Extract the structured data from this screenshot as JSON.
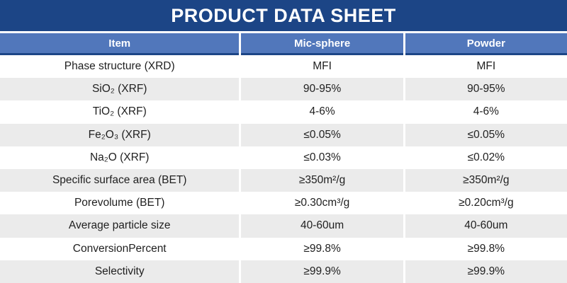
{
  "title": "PRODUCT DATA SHEET",
  "table": {
    "columns": [
      "Item",
      "Mic-sphere",
      "Powder"
    ],
    "rows": [
      {
        "item": "Phase structure (XRD)",
        "mic_sphere": "MFI",
        "powder": "MFI"
      },
      {
        "item": "SiO₂ (XRF)",
        "mic_sphere": "90-95%",
        "powder": "90-95%"
      },
      {
        "item": "TiO₂ (XRF)",
        "mic_sphere": "4-6%",
        "powder": "4-6%"
      },
      {
        "item": "Fe₂O₃ (XRF)",
        "mic_sphere": "≤0.05%",
        "powder": "≤0.05%"
      },
      {
        "item": "Na₂O (XRF)",
        "mic_sphere": "≤0.03%",
        "powder": "≤0.02%"
      },
      {
        "item": "Specific surface area (BET)",
        "mic_sphere": "≥350m²/g",
        "powder": "≥350m²/g"
      },
      {
        "item": "Porevolume (BET)",
        "mic_sphere": "≥0.30cm³/g",
        "powder": "≥0.20cm³/g"
      },
      {
        "item": "Average particle size",
        "mic_sphere": "40-60um",
        "powder": "40-60um"
      },
      {
        "item": "ConversionPercent",
        "mic_sphere": "≥99.8%",
        "powder": "≥99.8%"
      },
      {
        "item": "Selectivity",
        "mic_sphere": "≥99.9%",
        "powder": "≥99.9%"
      }
    ]
  },
  "colors": {
    "navy": "#1c4586",
    "header_blue": "#5177bb",
    "stripe": "#ebebeb",
    "title_text": "#ffffff",
    "body_text": "#1f1f1f"
  }
}
